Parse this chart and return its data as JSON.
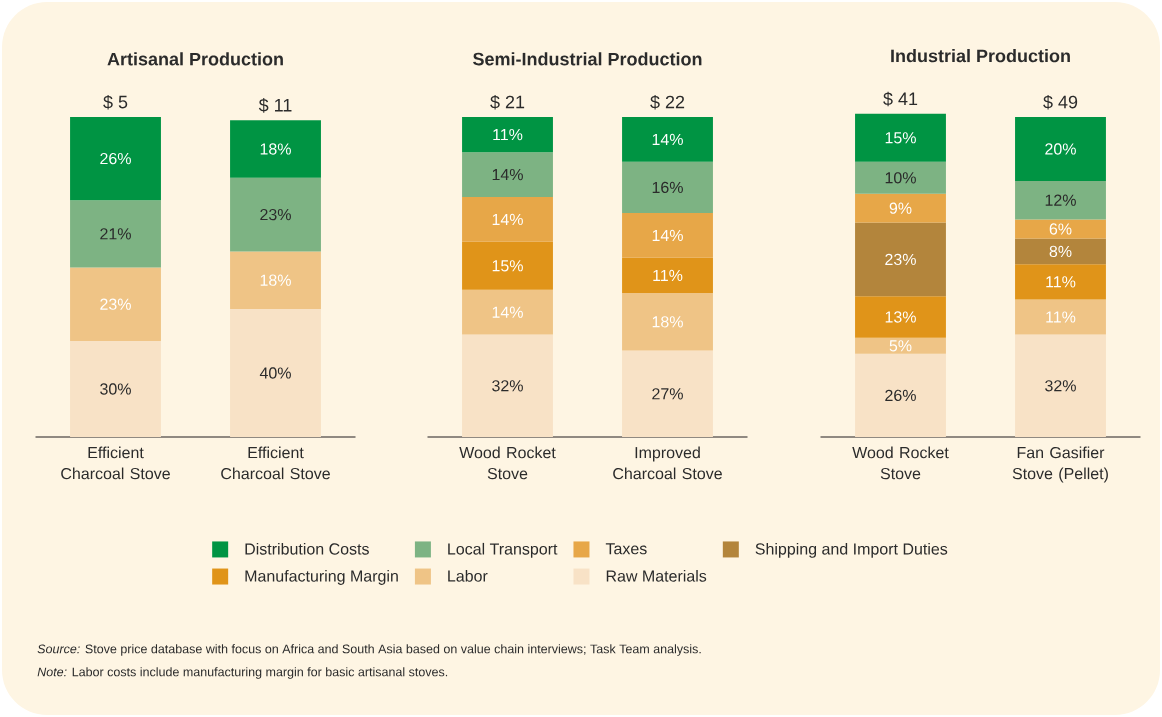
{
  "chart_data": [
    {
      "type": "bar",
      "stacked": true,
      "title": "Artisanal Production",
      "categories": [
        "Efficient Charcoal Stove",
        "Efficient Charcoal Stove"
      ],
      "annotations": [
        {
          "text": "$ 5",
          "x": "Efficient Charcoal Stove",
          "y": 100
        },
        "$ 11",
        "*Source:* Stove price database with focus on Africa and South Asia based on value chain interviews; Task Team analysis.",
        "*Note:* Labor costs include manufacturing margin for basic artisanal stoves."
      ],
      "series": [
        {
          "color": "#f8e2c6",
          "values": [
            30,
            40
          ],
          "value_labels": [
            "30%",
            "40%"
          ]
        },
        {
          "color": "#efc486",
          "values": [
            23,
            18
          ],
          "value_labels": [
            "23%",
            "18%"
          ]
        },
        {
          "color": "#e09419",
          "values": [
            null,
            null
          ]
        },
        {
          "color": "#b3853c",
          "values": [
            null,
            null
          ]
        },
        {
          "color": "#e7a748",
          "values": [
            null,
            null
          ]
        },
        {
          "color": "#7db383",
          "values": [
            21,
            23
          ],
          "value_labels": [
            "21%",
            "23%"
          ]
        },
        {
          "color": "#009443",
          "values": [
            26,
            18
          ],
          "value_labels": [
            "26%",
            "18%"
          ]
        }
      ]
    },
    {
      "type": "bar",
      "stacked": true,
      "title": "Semi-Industrial Production",
      "categories": [
        "Wood Rocket Stove",
        "Improved Charcoal Stove"
      ],
      "annotations": [
        {
          "text": "$ 21",
          "x": "Wood Rocket Stove",
          "y": 100
        },
        {
          "text": "$ 22",
          "x": "Improved Charcoal Stove",
          "y": 100
        }
      ],
      "series": [
        {
          "color": "#f8e2c6",
          "values": [
            32,
            27
          ],
          "value_labels": [
            "32%",
            "27%"
          ]
        },
        {
          "color": "#efc486",
          "values": [
            14,
            18
          ],
          "value_labels": [
            "14%",
            "18%"
          ]
        },
        {
          "color": "#e09419",
          "values": [
            15,
            11
          ],
          "value_labels": [
            "15%",
            "11%"
          ]
        },
        {
          "color": "#b3853c",
          "values": [
            null,
            null
          ]
        },
        {
          "color": "#e7a748",
          "values": [
            14,
            14
          ],
          "value_labels": [
            "14%",
            "14%"
          ]
        },
        {
          "color": "#7db383",
          "values": [
            14,
            16
          ],
          "value_labels": [
            "14%",
            "16%"
          ]
        },
        {
          "color": "#009443",
          "values": [
            11,
            14
          ],
          "value_labels": [
            "11%",
            "14%"
          ]
        }
      ]
    },
    {
      "type": "bar",
      "stacked": true,
      "title": "Industrial Production",
      "categories": [
        "Wood Rocket Stove",
        "Fan Gasifier Stove (Pellet)"
      ],
      "annotations": [
        {
          "text": "$ 41",
          "x": "Wood Rocket Stove",
          "y": 101
        },
        {
          "text": "$ 49",
          "x": "Fan Gasifier Stove (Pellet)",
          "y": 100
        }
      ],
      "legend": "bottom",
      "series": [
        {
          "name": "Raw Materials",
          "color": "#f8e2c6",
          "values": [
            26,
            32
          ],
          "value_labels": [
            "26%",
            "32%"
          ]
        },
        {
          "name": "Labor",
          "color": "#efc486",
          "values": [
            5,
            11
          ],
          "value_labels": [
            "5%",
            "11%"
          ]
        },
        {
          "name": "Manufacturing Margin",
          "color": "#e09419",
          "values": [
            13,
            11
          ],
          "value_labels": [
            "13%",
            "11%"
          ]
        },
        {
          "name": "Shipping and Import Duties",
          "color": "#b3853c",
          "values": [
            23,
            8
          ],
          "value_labels": [
            "23%",
            "8%"
          ]
        },
        {
          "name": "Taxes",
          "color": "#e7a748",
          "values": [
            9,
            6
          ],
          "value_labels": [
            "9%",
            "6%"
          ]
        },
        {
          "name": "Local Transport",
          "color": "#7db383",
          "values": [
            10,
            12
          ],
          "value_labels": [
            "10%",
            "12%"
          ]
        },
        {
          "name": "Distribution Costs",
          "color": "#009443",
          "values": [
            15,
            20
          ],
          "value_labels": [
            "15%",
            "20%"
          ]
        }
      ]
    }
  ]
}
